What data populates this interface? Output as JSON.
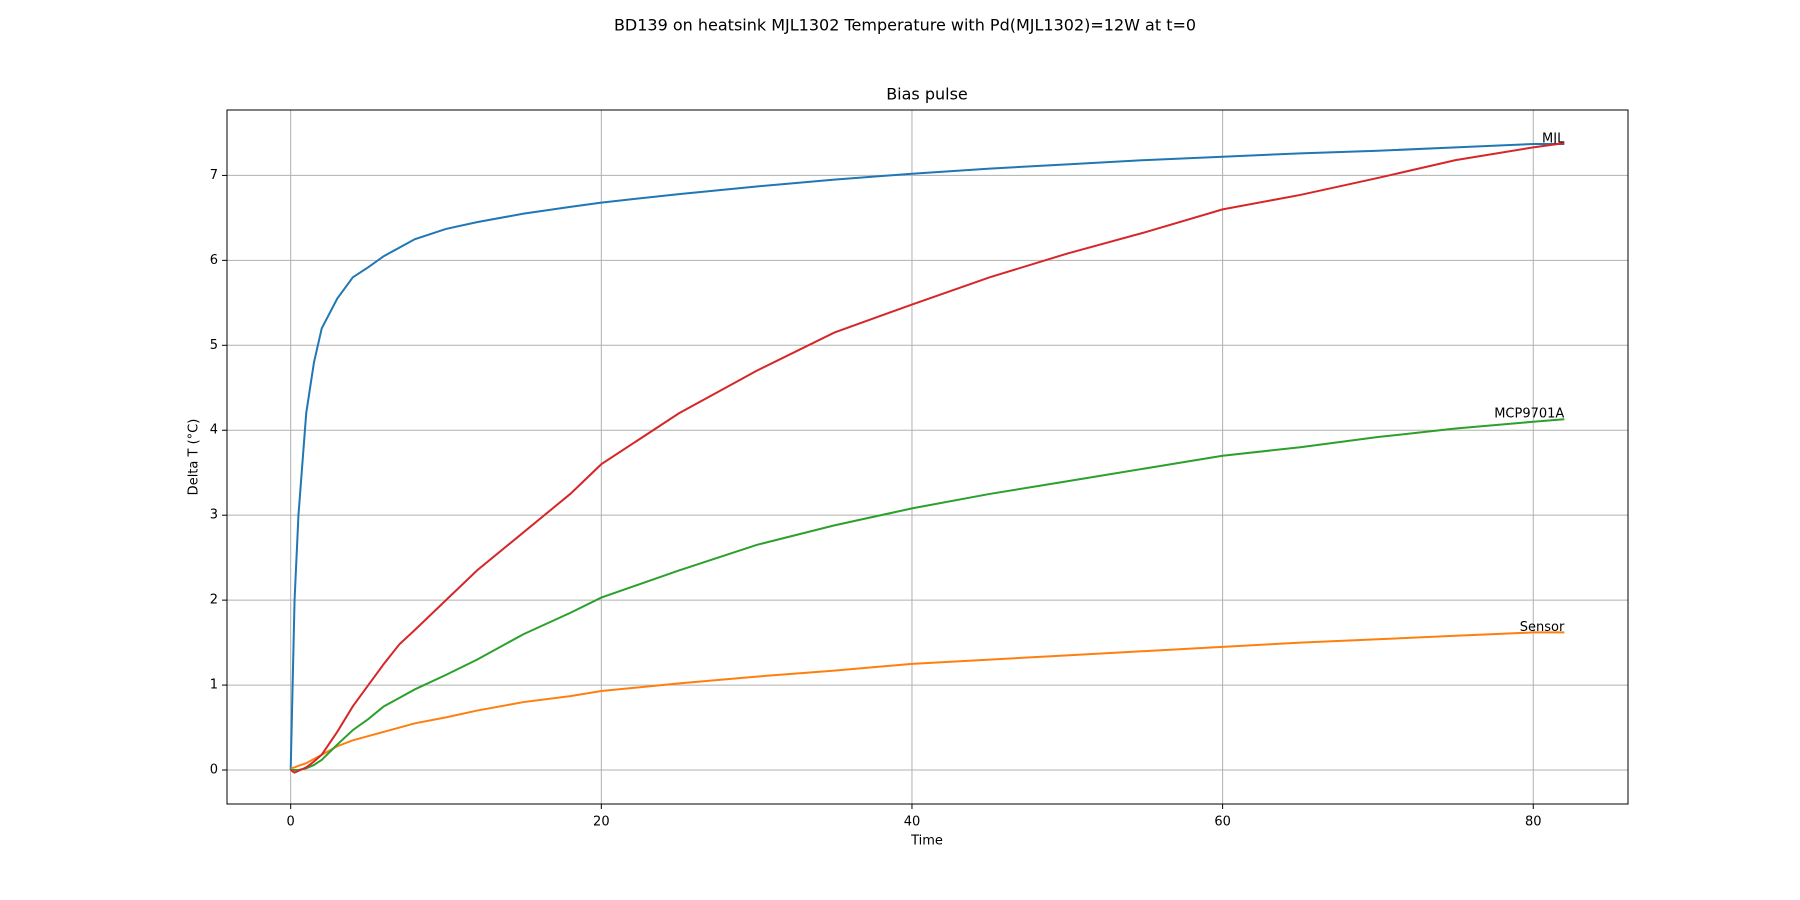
{
  "chart_data": {
    "type": "line",
    "title": "BD139 on heatsink MJL1302 Temperature with Pd(MJL1302)=12W at t=0",
    "subtitle": "Bias pulse",
    "x_label": "Time",
    "y_label": "Delta T (°C)",
    "x": [
      0,
      0.25,
      0.5,
      1,
      1.5,
      2,
      3,
      4,
      5,
      6,
      7,
      8,
      10,
      12,
      15,
      18,
      20,
      25,
      30,
      35,
      40,
      45,
      50,
      55,
      60,
      65,
      70,
      75,
      80,
      82
    ],
    "series": [
      {
        "name": "MJL",
        "color": "#1f77b4",
        "values": [
          0,
          2.0,
          3.0,
          4.2,
          4.8,
          5.2,
          5.55,
          5.8,
          5.92,
          6.05,
          6.15,
          6.25,
          6.37,
          6.45,
          6.55,
          6.63,
          6.68,
          6.78,
          6.87,
          6.95,
          7.02,
          7.08,
          7.13,
          7.18,
          7.22,
          7.26,
          7.29,
          7.33,
          7.37,
          7.37
        ]
      },
      {
        "name": "Sensor",
        "color": "#ff7f0e",
        "values": [
          0.02,
          0.03,
          0.05,
          0.08,
          0.13,
          0.18,
          0.28,
          0.35,
          0.4,
          0.45,
          0.5,
          0.55,
          0.62,
          0.7,
          0.8,
          0.87,
          0.93,
          1.02,
          1.1,
          1.17,
          1.25,
          1.3,
          1.35,
          1.4,
          1.45,
          1.5,
          1.54,
          1.58,
          1.62,
          1.62
        ]
      },
      {
        "name": "MCP9701A",
        "color": "#2ca02c",
        "values": [
          0,
          0,
          0,
          0.02,
          0.06,
          0.12,
          0.3,
          0.47,
          0.6,
          0.75,
          0.85,
          0.95,
          1.12,
          1.3,
          1.6,
          1.85,
          2.03,
          2.35,
          2.65,
          2.88,
          3.08,
          3.25,
          3.4,
          3.55,
          3.7,
          3.8,
          3.92,
          4.02,
          4.1,
          4.13
        ]
      },
      {
        "color": "#d62728",
        "values": [
          0,
          -0.03,
          -0.01,
          0.03,
          0.1,
          0.18,
          0.45,
          0.75,
          1.0,
          1.25,
          1.48,
          1.65,
          2.0,
          2.35,
          2.8,
          3.25,
          3.6,
          4.2,
          4.7,
          5.15,
          5.48,
          5.8,
          6.08,
          6.33,
          6.6,
          6.77,
          6.97,
          7.18,
          7.33,
          7.38
        ]
      }
    ],
    "xlim": [
      -4.1,
      86.1
    ],
    "ylim": [
      -0.4,
      7.77
    ],
    "xticks": [
      0,
      20,
      40,
      60,
      80
    ],
    "yticks": [
      0,
      1,
      2,
      3,
      4,
      5,
      6,
      7
    ],
    "grid": true
  }
}
